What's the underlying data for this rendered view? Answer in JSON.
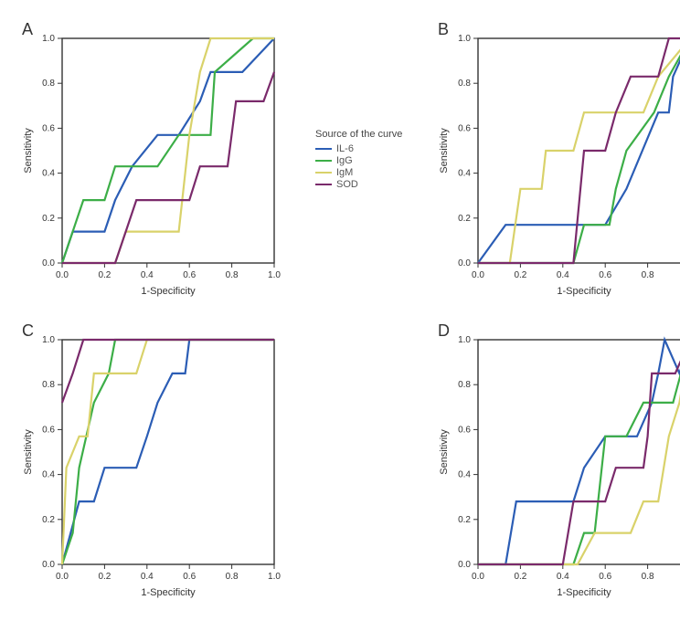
{
  "layout": {
    "panels": [
      "A",
      "B",
      "C",
      "D"
    ],
    "plot": {
      "x_title": "1-Specificity",
      "y_title": "Sensitivity"
    },
    "axis": {
      "ticks": [
        0.0,
        0.2,
        0.4,
        0.6,
        0.8,
        1.0
      ],
      "tick_labels": [
        "0.0",
        "0.2",
        "0.4",
        "0.6",
        "0.8",
        "1.0"
      ]
    },
    "line_width": 2.2,
    "axis_color": "#333333",
    "background": "#ffffff",
    "label_fontsize": 18
  },
  "legend": {
    "title": "Source of the curve",
    "items": [
      {
        "label": "IL-6",
        "color": "#2b5db5"
      },
      {
        "label": "IgG",
        "color": "#3cae47"
      },
      {
        "label": "IgM",
        "color": "#d9d26a"
      },
      {
        "label": "SOD",
        "color": "#7a2a6b"
      }
    ]
  },
  "colors": {
    "IL-6": "#2b5db5",
    "IgG": "#3cae47",
    "IgM": "#d9d26a",
    "SOD": "#7a2a6b"
  },
  "panels": {
    "A": {
      "IL-6": [
        [
          0,
          0
        ],
        [
          0.05,
          0.14
        ],
        [
          0.2,
          0.14
        ],
        [
          0.25,
          0.28
        ],
        [
          0.33,
          0.43
        ],
        [
          0.45,
          0.57
        ],
        [
          0.55,
          0.57
        ],
        [
          0.65,
          0.72
        ],
        [
          0.7,
          0.85
        ],
        [
          0.85,
          0.85
        ],
        [
          1,
          1
        ]
      ],
      "IgG": [
        [
          0,
          0
        ],
        [
          0.1,
          0.28
        ],
        [
          0.2,
          0.28
        ],
        [
          0.25,
          0.43
        ],
        [
          0.45,
          0.43
        ],
        [
          0.55,
          0.57
        ],
        [
          0.7,
          0.57
        ],
        [
          0.72,
          0.85
        ],
        [
          0.9,
          1
        ],
        [
          1,
          1
        ]
      ],
      "IgM": [
        [
          0,
          0
        ],
        [
          0.25,
          0
        ],
        [
          0.3,
          0.14
        ],
        [
          0.55,
          0.14
        ],
        [
          0.6,
          0.57
        ],
        [
          0.65,
          0.85
        ],
        [
          0.7,
          1
        ],
        [
          1,
          1
        ]
      ],
      "SOD": [
        [
          0,
          0
        ],
        [
          0.25,
          0
        ],
        [
          0.3,
          0.14
        ],
        [
          0.35,
          0.28
        ],
        [
          0.6,
          0.28
        ],
        [
          0.65,
          0.43
        ],
        [
          0.78,
          0.43
        ],
        [
          0.82,
          0.72
        ],
        [
          0.95,
          0.72
        ],
        [
          1,
          0.85
        ]
      ]
    },
    "B": {
      "IL-6": [
        [
          0,
          0
        ],
        [
          0.13,
          0.17
        ],
        [
          0.5,
          0.17
        ],
        [
          0.6,
          0.17
        ],
        [
          0.7,
          0.33
        ],
        [
          0.85,
          0.67
        ],
        [
          0.9,
          0.67
        ],
        [
          0.92,
          0.83
        ],
        [
          1,
          1
        ]
      ],
      "IgG": [
        [
          0,
          0
        ],
        [
          0.45,
          0
        ],
        [
          0.5,
          0.17
        ],
        [
          0.62,
          0.17
        ],
        [
          0.65,
          0.33
        ],
        [
          0.7,
          0.5
        ],
        [
          0.83,
          0.67
        ],
        [
          0.9,
          0.83
        ],
        [
          1,
          1
        ]
      ],
      "IgM": [
        [
          0,
          0
        ],
        [
          0.15,
          0
        ],
        [
          0.2,
          0.33
        ],
        [
          0.3,
          0.33
        ],
        [
          0.32,
          0.5
        ],
        [
          0.45,
          0.5
        ],
        [
          0.5,
          0.67
        ],
        [
          0.78,
          0.67
        ],
        [
          0.85,
          0.83
        ],
        [
          1,
          1
        ]
      ],
      "SOD": [
        [
          0,
          0
        ],
        [
          0.45,
          0
        ],
        [
          0.5,
          0.5
        ],
        [
          0.6,
          0.5
        ],
        [
          0.65,
          0.67
        ],
        [
          0.72,
          0.83
        ],
        [
          0.85,
          0.83
        ],
        [
          0.9,
          1
        ],
        [
          1,
          1
        ]
      ]
    },
    "C": {
      "IL-6": [
        [
          0,
          0
        ],
        [
          0.08,
          0.28
        ],
        [
          0.15,
          0.28
        ],
        [
          0.2,
          0.43
        ],
        [
          0.35,
          0.43
        ],
        [
          0.4,
          0.57
        ],
        [
          0.45,
          0.72
        ],
        [
          0.52,
          0.85
        ],
        [
          0.58,
          0.85
        ],
        [
          0.6,
          1
        ],
        [
          1,
          1
        ]
      ],
      "IgG": [
        [
          0,
          0
        ],
        [
          0.05,
          0.14
        ],
        [
          0.08,
          0.43
        ],
        [
          0.15,
          0.72
        ],
        [
          0.22,
          0.85
        ],
        [
          0.25,
          1
        ],
        [
          1,
          1
        ]
      ],
      "IgM": [
        [
          0,
          0
        ],
        [
          0.02,
          0.43
        ],
        [
          0.08,
          0.57
        ],
        [
          0.12,
          0.57
        ],
        [
          0.15,
          0.85
        ],
        [
          0.35,
          0.85
        ],
        [
          0.4,
          1
        ],
        [
          1,
          1
        ]
      ],
      "SOD": [
        [
          0,
          0.72
        ],
        [
          0.05,
          0.85
        ],
        [
          0.1,
          1
        ],
        [
          1,
          1
        ]
      ]
    },
    "D": {
      "IL-6": [
        [
          0,
          0
        ],
        [
          0.13,
          0
        ],
        [
          0.18,
          0.28
        ],
        [
          0.45,
          0.28
        ],
        [
          0.5,
          0.43
        ],
        [
          0.6,
          0.57
        ],
        [
          0.75,
          0.57
        ],
        [
          0.82,
          0.72
        ],
        [
          0.85,
          0.85
        ],
        [
          0.88,
          1
        ],
        [
          0.95,
          0.85
        ],
        [
          1,
          1
        ]
      ],
      "IgG": [
        [
          0,
          0
        ],
        [
          0.45,
          0
        ],
        [
          0.5,
          0.14
        ],
        [
          0.55,
          0.14
        ],
        [
          0.6,
          0.57
        ],
        [
          0.7,
          0.57
        ],
        [
          0.78,
          0.72
        ],
        [
          0.92,
          0.72
        ],
        [
          1,
          1
        ]
      ],
      "IgM": [
        [
          0,
          0
        ],
        [
          0.47,
          0
        ],
        [
          0.55,
          0.14
        ],
        [
          0.72,
          0.14
        ],
        [
          0.78,
          0.28
        ],
        [
          0.85,
          0.28
        ],
        [
          0.9,
          0.57
        ],
        [
          0.95,
          0.72
        ],
        [
          1,
          1
        ]
      ],
      "SOD": [
        [
          0,
          0
        ],
        [
          0.4,
          0
        ],
        [
          0.45,
          0.28
        ],
        [
          0.6,
          0.28
        ],
        [
          0.65,
          0.43
        ],
        [
          0.78,
          0.43
        ],
        [
          0.8,
          0.57
        ],
        [
          0.82,
          0.85
        ],
        [
          0.93,
          0.85
        ],
        [
          1,
          1
        ]
      ]
    }
  }
}
